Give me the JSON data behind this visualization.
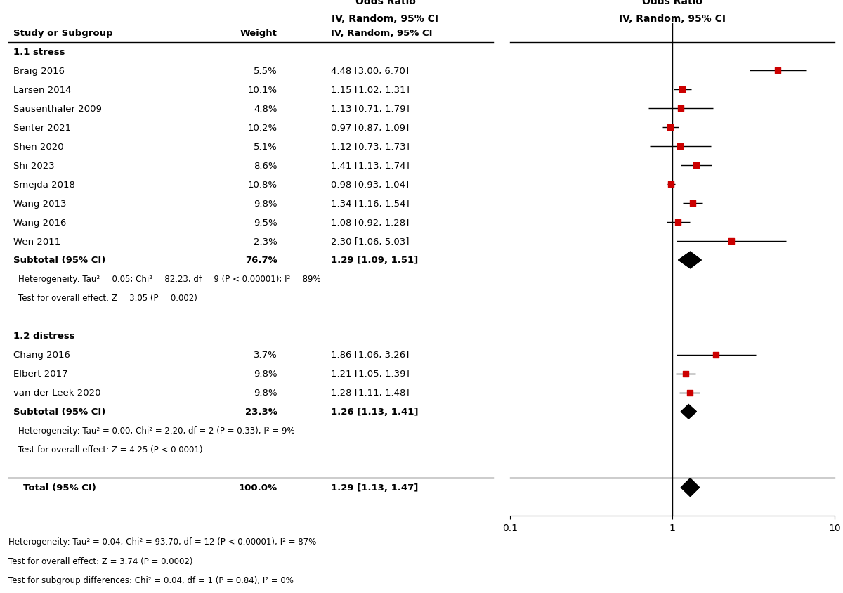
{
  "group1_label": "1.1 stress",
  "group1_studies": [
    {
      "name": "Braig 2016",
      "weight": "5.5%",
      "ci_text": "4.48 [3.00, 6.70]",
      "or": 4.48,
      "lo": 3.0,
      "hi": 6.7
    },
    {
      "name": "Larsen 2014",
      "weight": "10.1%",
      "ci_text": "1.15 [1.02, 1.31]",
      "or": 1.15,
      "lo": 1.02,
      "hi": 1.31
    },
    {
      "name": "Sausenthaler 2009",
      "weight": "4.8%",
      "ci_text": "1.13 [0.71, 1.79]",
      "or": 1.13,
      "lo": 0.71,
      "hi": 1.79
    },
    {
      "name": "Senter 2021",
      "weight": "10.2%",
      "ci_text": "0.97 [0.87, 1.09]",
      "or": 0.97,
      "lo": 0.87,
      "hi": 1.09
    },
    {
      "name": "Shen 2020",
      "weight": "5.1%",
      "ci_text": "1.12 [0.73, 1.73]",
      "or": 1.12,
      "lo": 0.73,
      "hi": 1.73
    },
    {
      "name": "Shi 2023",
      "weight": "8.6%",
      "ci_text": "1.41 [1.13, 1.74]",
      "or": 1.41,
      "lo": 1.13,
      "hi": 1.74
    },
    {
      "name": "Smejda 2018",
      "weight": "10.8%",
      "ci_text": "0.98 [0.93, 1.04]",
      "or": 0.98,
      "lo": 0.93,
      "hi": 1.04
    },
    {
      "name": "Wang 2013",
      "weight": "9.8%",
      "ci_text": "1.34 [1.16, 1.54]",
      "or": 1.34,
      "lo": 1.16,
      "hi": 1.54
    },
    {
      "name": "Wang 2016",
      "weight": "9.5%",
      "ci_text": "1.08 [0.92, 1.28]",
      "or": 1.08,
      "lo": 0.92,
      "hi": 1.28
    },
    {
      "name": "Wen 2011",
      "weight": "2.3%",
      "ci_text": "2.30 [1.06, 5.03]",
      "or": 2.3,
      "lo": 1.06,
      "hi": 5.03
    }
  ],
  "group1_subtotal": {
    "weight": "76.7%",
    "ci_text": "1.29 [1.09, 1.51]",
    "or": 1.29,
    "lo": 1.09,
    "hi": 1.51
  },
  "group1_het": "Heterogeneity: Tau² = 0.05; Chi² = 82.23, df = 9 (P < 0.00001); I² = 89%",
  "group1_test": "Test for overall effect: Z = 3.05 (P = 0.002)",
  "group2_label": "1.2 distress",
  "group2_studies": [
    {
      "name": "Chang 2016",
      "weight": "3.7%",
      "ci_text": "1.86 [1.06, 3.26]",
      "or": 1.86,
      "lo": 1.06,
      "hi": 3.26
    },
    {
      "name": "Elbert 2017",
      "weight": "9.8%",
      "ci_text": "1.21 [1.05, 1.39]",
      "or": 1.21,
      "lo": 1.05,
      "hi": 1.39
    },
    {
      "name": "van der Leek 2020",
      "weight": "9.8%",
      "ci_text": "1.28 [1.11, 1.48]",
      "or": 1.28,
      "lo": 1.11,
      "hi": 1.48
    }
  ],
  "group2_subtotal": {
    "weight": "23.3%",
    "ci_text": "1.26 [1.13, 1.41]",
    "or": 1.26,
    "lo": 1.13,
    "hi": 1.41
  },
  "group2_het": "Heterogeneity: Tau² = 0.00; Chi² = 2.20, df = 2 (P = 0.33); I² = 9%",
  "group2_test": "Test for overall effect: Z = 4.25 (P < 0.0001)",
  "total": {
    "weight": "100.0%",
    "ci_text": "1.29 [1.13, 1.47]",
    "or": 1.29,
    "lo": 1.13,
    "hi": 1.47
  },
  "footer1": "Heterogeneity: Tau² = 0.04; Chi² = 93.70, df = 12 (P < 0.00001); I² = 87%",
  "footer2": "Test for overall effect: Z = 3.74 (P = 0.0002)",
  "footer3": "Test for subgroup differences: Chi² = 0.04, df = 1 (P = 0.84), I² = 0%",
  "xmin": 0.1,
  "xmax": 10,
  "xref": 1.0,
  "point_color": "#cc0000",
  "diamond_color": "#000000",
  "bg_color": "#ffffff",
  "text_fs": 9.5,
  "het_fs": 8.5,
  "n_rows": 26
}
